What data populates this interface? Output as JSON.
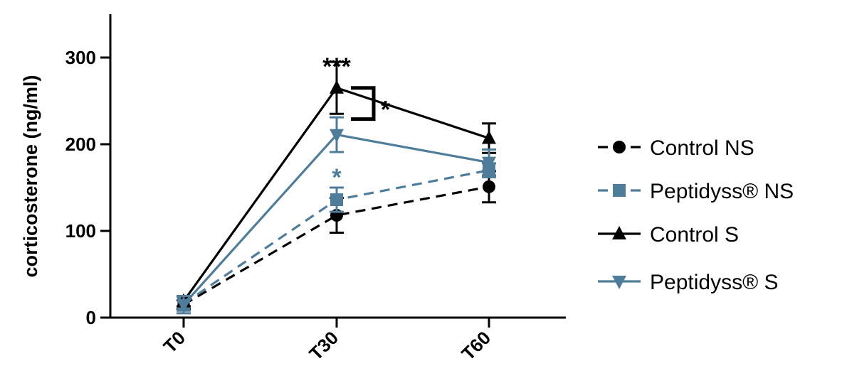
{
  "chart_data": {
    "type": "line",
    "title": "",
    "xlabel": "",
    "ylabel": "corticosterone (ng/ml)",
    "categories": [
      "T0",
      "T30",
      "T60"
    ],
    "ylim": [
      0,
      350
    ],
    "yticks": [
      0,
      100,
      200,
      300
    ],
    "grid": false,
    "legend_position": "right",
    "series": [
      {
        "name": "Control NS",
        "values": [
          15,
          118,
          151
        ],
        "errors": [
          5,
          20,
          18
        ],
        "color": "#000000",
        "dash": true,
        "marker": "circle"
      },
      {
        "name": "Peptidyss® NS",
        "values": [
          16,
          136,
          170
        ],
        "errors": [
          8,
          14,
          8
        ],
        "color": "#4f7d99",
        "dash": true,
        "marker": "square"
      },
      {
        "name": "Control S",
        "values": [
          19,
          265,
          207
        ],
        "errors": [
          6,
          30,
          17
        ],
        "color": "#000000",
        "dash": false,
        "marker": "triangle-up"
      },
      {
        "name": "Peptidyss® S",
        "values": [
          15,
          211,
          179
        ],
        "errors": [
          10,
          20,
          15
        ],
        "color": "#4f7d99",
        "dash": false,
        "marker": "triangle-down"
      }
    ],
    "annotations": [
      {
        "text": "***",
        "category": "T30",
        "y": 300,
        "color": "#000000"
      },
      {
        "text": "*",
        "category": "T30",
        "y": 172,
        "color": "#4f7d99"
      },
      {
        "text": "*",
        "bracket_between": [
          "Control S",
          "Peptidyss® S"
        ],
        "category": "T30",
        "color": "#000000"
      }
    ]
  }
}
